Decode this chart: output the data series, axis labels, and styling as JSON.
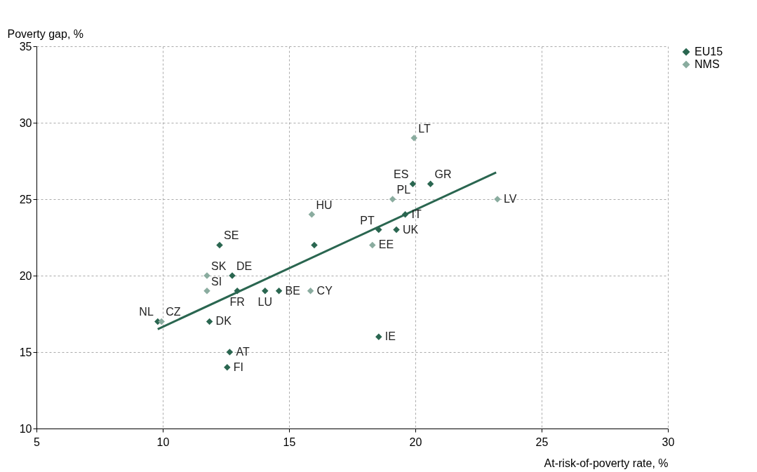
{
  "chart_data": {
    "type": "scatter",
    "xlabel": "At-risk-of-poverty rate, %",
    "ylabel": "Poverty gap, %",
    "xlim": [
      5,
      30
    ],
    "xticks": [
      5,
      10,
      15,
      20,
      25,
      30
    ],
    "ylim": [
      10,
      35
    ],
    "yticks": [
      10,
      15,
      20,
      25,
      30,
      35
    ],
    "grid": true,
    "legend": "top right",
    "marker": "diamond",
    "series": [
      {
        "name": "EU15",
        "color": "#2a6650",
        "x": [
          9.8,
          12.25,
          12.75,
          12.95,
          11.85,
          12.65,
          12.55,
          14.05,
          14.6,
          16.0,
          18.55,
          19.25,
          19.6,
          19.9,
          20.6,
          18.55
        ],
        "values": [
          17,
          22,
          20,
          19,
          17,
          15,
          14,
          19,
          19,
          22,
          23,
          23,
          24,
          26,
          26,
          16
        ]
      },
      {
        "name": "NMS",
        "color": "#8aac9f",
        "x": [
          9.95,
          11.75,
          11.75,
          15.9,
          15.85,
          18.3,
          19.1,
          19.95,
          23.25
        ],
        "values": [
          17,
          20,
          19,
          24,
          19,
          22,
          25,
          29,
          25
        ]
      },
      {
        "type": "line",
        "marker": "none",
        "color": "#2a6650",
        "x": [
          9.8,
          23.2
        ],
        "values": [
          16.5,
          26.75
        ]
      }
    ],
    "annotations": [
      {
        "text": "NL",
        "x": 9.8,
        "y": 17
      },
      {
        "text": "SE",
        "x": 12.25,
        "y": 22
      },
      {
        "text": "DE",
        "x": 12.75,
        "y": 20
      },
      {
        "text": "FR",
        "x": 12.95,
        "y": 19
      },
      {
        "text": "DK",
        "x": 11.85,
        "y": 17
      },
      {
        "text": "AT",
        "x": 12.65,
        "y": 15
      },
      {
        "text": "FI",
        "x": 12.55,
        "y": 14
      },
      {
        "text": "LU",
        "x": 14.05,
        "y": 19
      },
      {
        "text": "BE",
        "x": 14.6,
        "y": 19
      },
      {
        "text": "PT",
        "x": 18.55,
        "y": 23
      },
      {
        "text": "UK",
        "x": 19.25,
        "y": 23
      },
      {
        "text": "IT",
        "x": 19.6,
        "y": 24
      },
      {
        "text": "ES",
        "x": 19.9,
        "y": 26
      },
      {
        "text": "GR",
        "x": 20.6,
        "y": 26
      },
      {
        "text": "IE",
        "x": 18.55,
        "y": 16
      },
      {
        "text": "CZ",
        "x": 9.95,
        "y": 17
      },
      {
        "text": "SK",
        "x": 11.75,
        "y": 20
      },
      {
        "text": "SI",
        "x": 11.75,
        "y": 19
      },
      {
        "text": "HU",
        "x": 15.9,
        "y": 24
      },
      {
        "text": "CY",
        "x": 15.85,
        "y": 19
      },
      {
        "text": "EE",
        "x": 18.3,
        "y": 22
      },
      {
        "text": "PL",
        "x": 19.1,
        "y": 25
      },
      {
        "text": "LT",
        "x": 19.95,
        "y": 29
      },
      {
        "text": "LV",
        "x": 23.25,
        "y": 25
      }
    ]
  }
}
